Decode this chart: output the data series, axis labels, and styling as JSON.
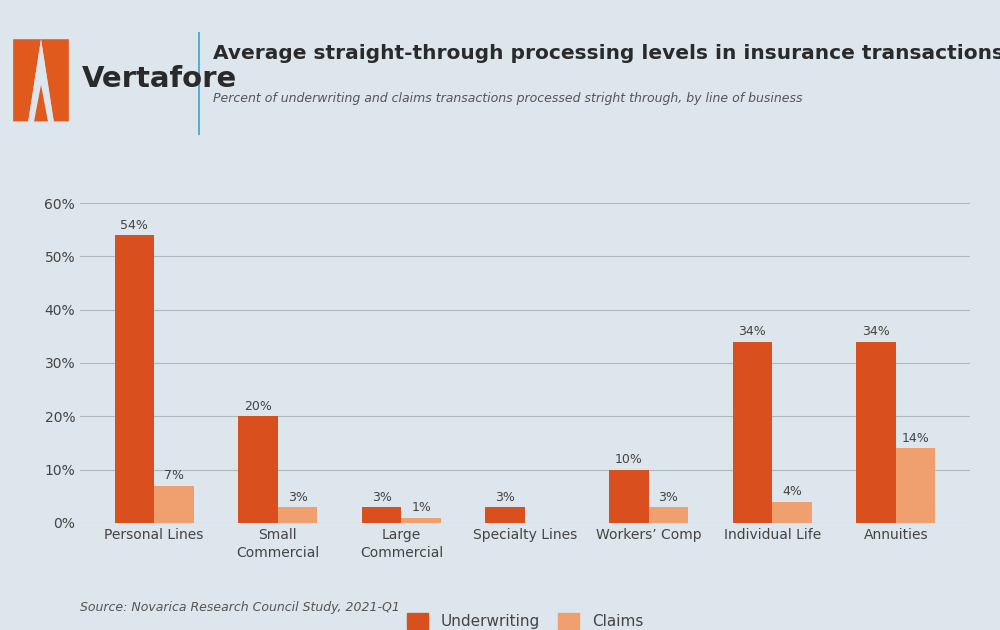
{
  "title": "Average straight-through processing levels in insurance transactions",
  "subtitle": "Percent of underwriting and claims transactions processed stright through, by line of business",
  "source": "Source: Novarica Research Council Study, 2021-Q1",
  "categories": [
    "Personal Lines",
    "Small\nCommercial",
    "Large\nCommercial",
    "Specialty Lines",
    "Workers’ Comp",
    "Individual Life",
    "Annuities"
  ],
  "underwriting": [
    54,
    20,
    3,
    3,
    10,
    34,
    34
  ],
  "claims": [
    7,
    3,
    1,
    0,
    3,
    4,
    14
  ],
  "claims_labels": [
    "7%",
    "3%",
    "1%",
    "",
    "3%",
    "4%",
    "14%"
  ],
  "underwriting_labels": [
    "54%",
    "20%",
    "3%",
    "3%",
    "10%",
    "34%",
    "34%"
  ],
  "underwriting_color": "#d94f1e",
  "claims_color": "#f0a06e",
  "background_color": "#dce6ec",
  "grid_color": "#b0b8be",
  "text_color": "#444444",
  "ytick_labels": [
    "0%",
    "10%",
    "20%",
    "30%",
    "40%",
    "50%",
    "60%"
  ],
  "ytick_values": [
    0,
    10,
    20,
    30,
    40,
    50,
    60
  ],
  "ylim": [
    0,
    65
  ],
  "bar_width": 0.32,
  "vertafore_orange": "#e05a1e",
  "divider_color": "#5aaccc",
  "title_color": "#2a2a2a",
  "subtitle_color": "#555555",
  "legend_labels": [
    "Underwriting",
    "Claims"
  ]
}
